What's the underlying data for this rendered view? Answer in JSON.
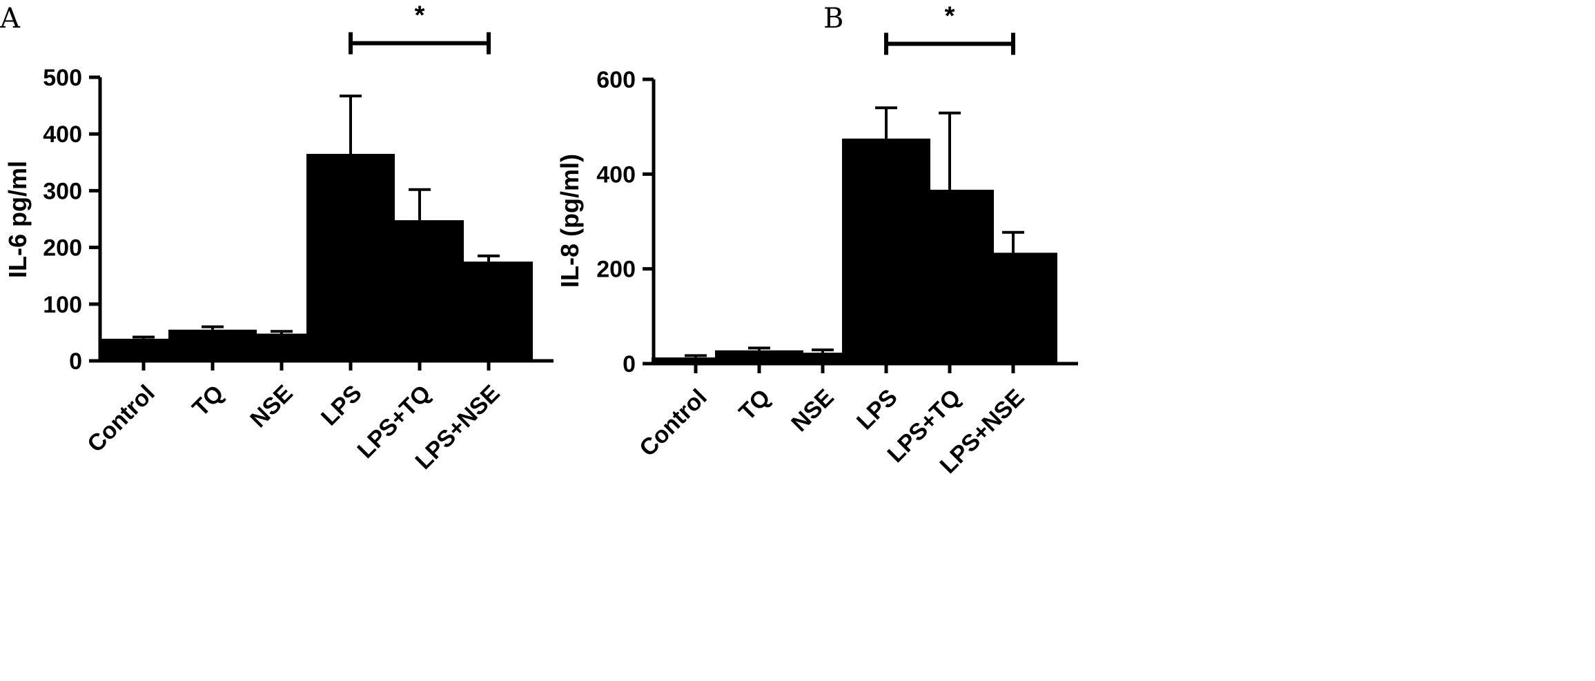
{
  "chart_data": [
    {
      "panel": "A",
      "type": "bar",
      "ylabel": "IL-6 pg/ml",
      "ylim": [
        0,
        500
      ],
      "yticks": [
        "0",
        "100",
        "200",
        "300",
        "400",
        "500"
      ],
      "categories": [
        "Control",
        "TQ",
        "NSE",
        "LPS",
        "LPS+TQ",
        "LPS+NSE"
      ],
      "values": [
        39,
        55,
        48,
        365,
        248,
        175
      ],
      "errors": [
        3,
        5,
        4,
        102,
        54,
        10
      ],
      "significance": {
        "label": "*",
        "from": "LPS",
        "to": "LPS+NSE",
        "bar_value": 560
      }
    },
    {
      "panel": "B",
      "type": "bar",
      "ylabel": "IL-8 (pg/ml)",
      "ylim": [
        0,
        600
      ],
      "yticks": [
        "0",
        "200",
        "400",
        "600"
      ],
      "categories": [
        "Control",
        "TQ",
        "NSE",
        "LPS",
        "LPS+TQ",
        "LPS+NSE"
      ],
      "values": [
        13,
        28,
        23,
        475,
        367,
        234
      ],
      "errors": [
        4,
        5,
        6,
        65,
        162,
        43
      ],
      "significance": {
        "label": "*",
        "from": "LPS",
        "to": "LPS+NSE",
        "bar_value": 675
      }
    }
  ]
}
